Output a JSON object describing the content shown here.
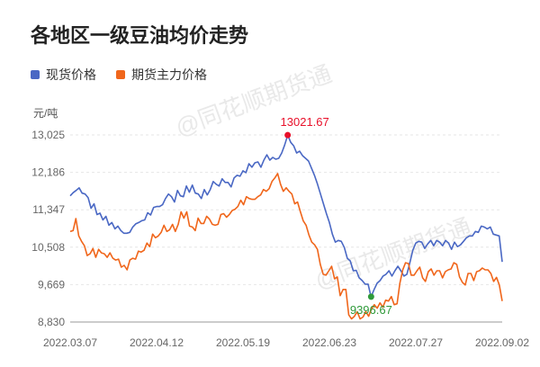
{
  "title": "各地区一级豆油均价走势",
  "unit_label": "元/吨",
  "watermark": "@同花顺期货通",
  "colors": {
    "spot": "#4a68c4",
    "futures": "#f0661b",
    "max_point": "#e8102a",
    "min_point": "#2f9a3a"
  },
  "chart_data": {
    "type": "line",
    "title": "各地区一级豆油均价走势",
    "ylabel": "元/吨",
    "ylim": [
      8830,
      13864
    ],
    "y_ticks": [
      "13,025",
      "12,186",
      "11,347",
      "10,508",
      "9,669",
      "8,830"
    ],
    "y_tick_values": [
      13025,
      12186,
      11347,
      10508,
      9669,
      8830
    ],
    "x_ticks": [
      "2022.03.07",
      "2022.04.12",
      "2022.05.19",
      "2022.06.23",
      "2022.07.27",
      "2022.09.02"
    ],
    "legend_position": "top-left",
    "max_label": "13021.67",
    "min_label": "9396.67",
    "series": [
      {
        "name": "现货价格",
        "values": [
          11660,
          11730,
          11780,
          11840,
          11720,
          11700,
          11620,
          11380,
          11480,
          11240,
          11270,
          11120,
          11200,
          11000,
          11060,
          10920,
          10980,
          10880,
          10820,
          10820,
          10840,
          10960,
          11030,
          11060,
          11100,
          11120,
          11280,
          11230,
          11400,
          11420,
          11420,
          11460,
          11600,
          11700,
          11640,
          11520,
          11780,
          11660,
          11640,
          11880,
          11740,
          11900,
          11720,
          11700,
          11600,
          11800,
          11680,
          11800,
          11980,
          11920,
          11880,
          12040,
          11960,
          11960,
          11860,
          12060,
          12120,
          12100,
          12220,
          12180,
          12380,
          12300,
          12400,
          12420,
          12300,
          12460,
          12580,
          12460,
          12520,
          12480,
          12500,
          12620,
          12800,
          13021.67,
          12860,
          12780,
          12620,
          12660,
          12560,
          12500,
          12440,
          12280,
          12120,
          11920,
          11700,
          11480,
          11260,
          11060,
          10800,
          10620,
          10660,
          10640,
          10500,
          10260,
          10200,
          9980,
          9990,
          9820,
          9760,
          9680,
          9680,
          9396.67,
          9560,
          9700,
          9760,
          9860,
          9900,
          9980,
          9860,
          9980,
          10080,
          9980,
          9860,
          9900,
          10160,
          10440,
          10600,
          10640,
          10620,
          10480,
          10580,
          10660,
          10540,
          10660,
          10620,
          10540,
          10660,
          10600,
          10460,
          10620,
          10520,
          10560,
          10640,
          10720,
          10760,
          10760,
          10860,
          10840,
          10980,
          10960,
          10920,
          10960,
          10800,
          10780,
          10760,
          10180
        ]
      },
      {
        "name": "期货主力价格",
        "values": [
          10860,
          10880,
          11150,
          10760,
          10640,
          10540,
          10320,
          10360,
          10480,
          10280,
          10460,
          10380,
          10360,
          10280,
          10380,
          10260,
          10220,
          10240,
          10060,
          10100,
          10000,
          10220,
          10260,
          10240,
          10420,
          10400,
          10440,
          10600,
          10520,
          10800,
          10720,
          10760,
          10840,
          11000,
          10860,
          10900,
          11020,
          10860,
          11020,
          11300,
          11160,
          11300,
          10980,
          10960,
          10880,
          11160,
          11040,
          11040,
          11200,
          11140,
          11020,
          11000,
          11020,
          11240,
          11260,
          11180,
          11240,
          11330,
          11360,
          11420,
          11560,
          11460,
          11640,
          11600,
          11580,
          11580,
          11640,
          11680,
          11800,
          11760,
          11820,
          11980,
          12060,
          12160,
          11920,
          11760,
          11840,
          11760,
          11700,
          11480,
          11520,
          11300,
          11100,
          11000,
          10780,
          10620,
          10560,
          10460,
          10120,
          9900,
          9880,
          9980,
          10080,
          9800,
          9840,
          9420,
          9560,
          9560,
          8990,
          8900,
          8960,
          9060,
          8900,
          8940,
          9060,
          8960,
          9120,
          9220,
          9140,
          9260,
          9160,
          9320,
          9300,
          9400,
          9220,
          9240,
          9700,
          10000,
          10160,
          10140,
          9880,
          9880,
          9980,
          10060,
          9820,
          9740,
          9960,
          10020,
          9880,
          9980,
          9980,
          9820,
          9960,
          10000,
          10020,
          10160,
          10120,
          9840,
          9720,
          9660,
          9920,
          9920,
          9760,
          9960,
          9980,
          10040,
          10000,
          10000,
          9920,
          9740,
          9830,
          9660,
          9300
        ]
      }
    ]
  }
}
